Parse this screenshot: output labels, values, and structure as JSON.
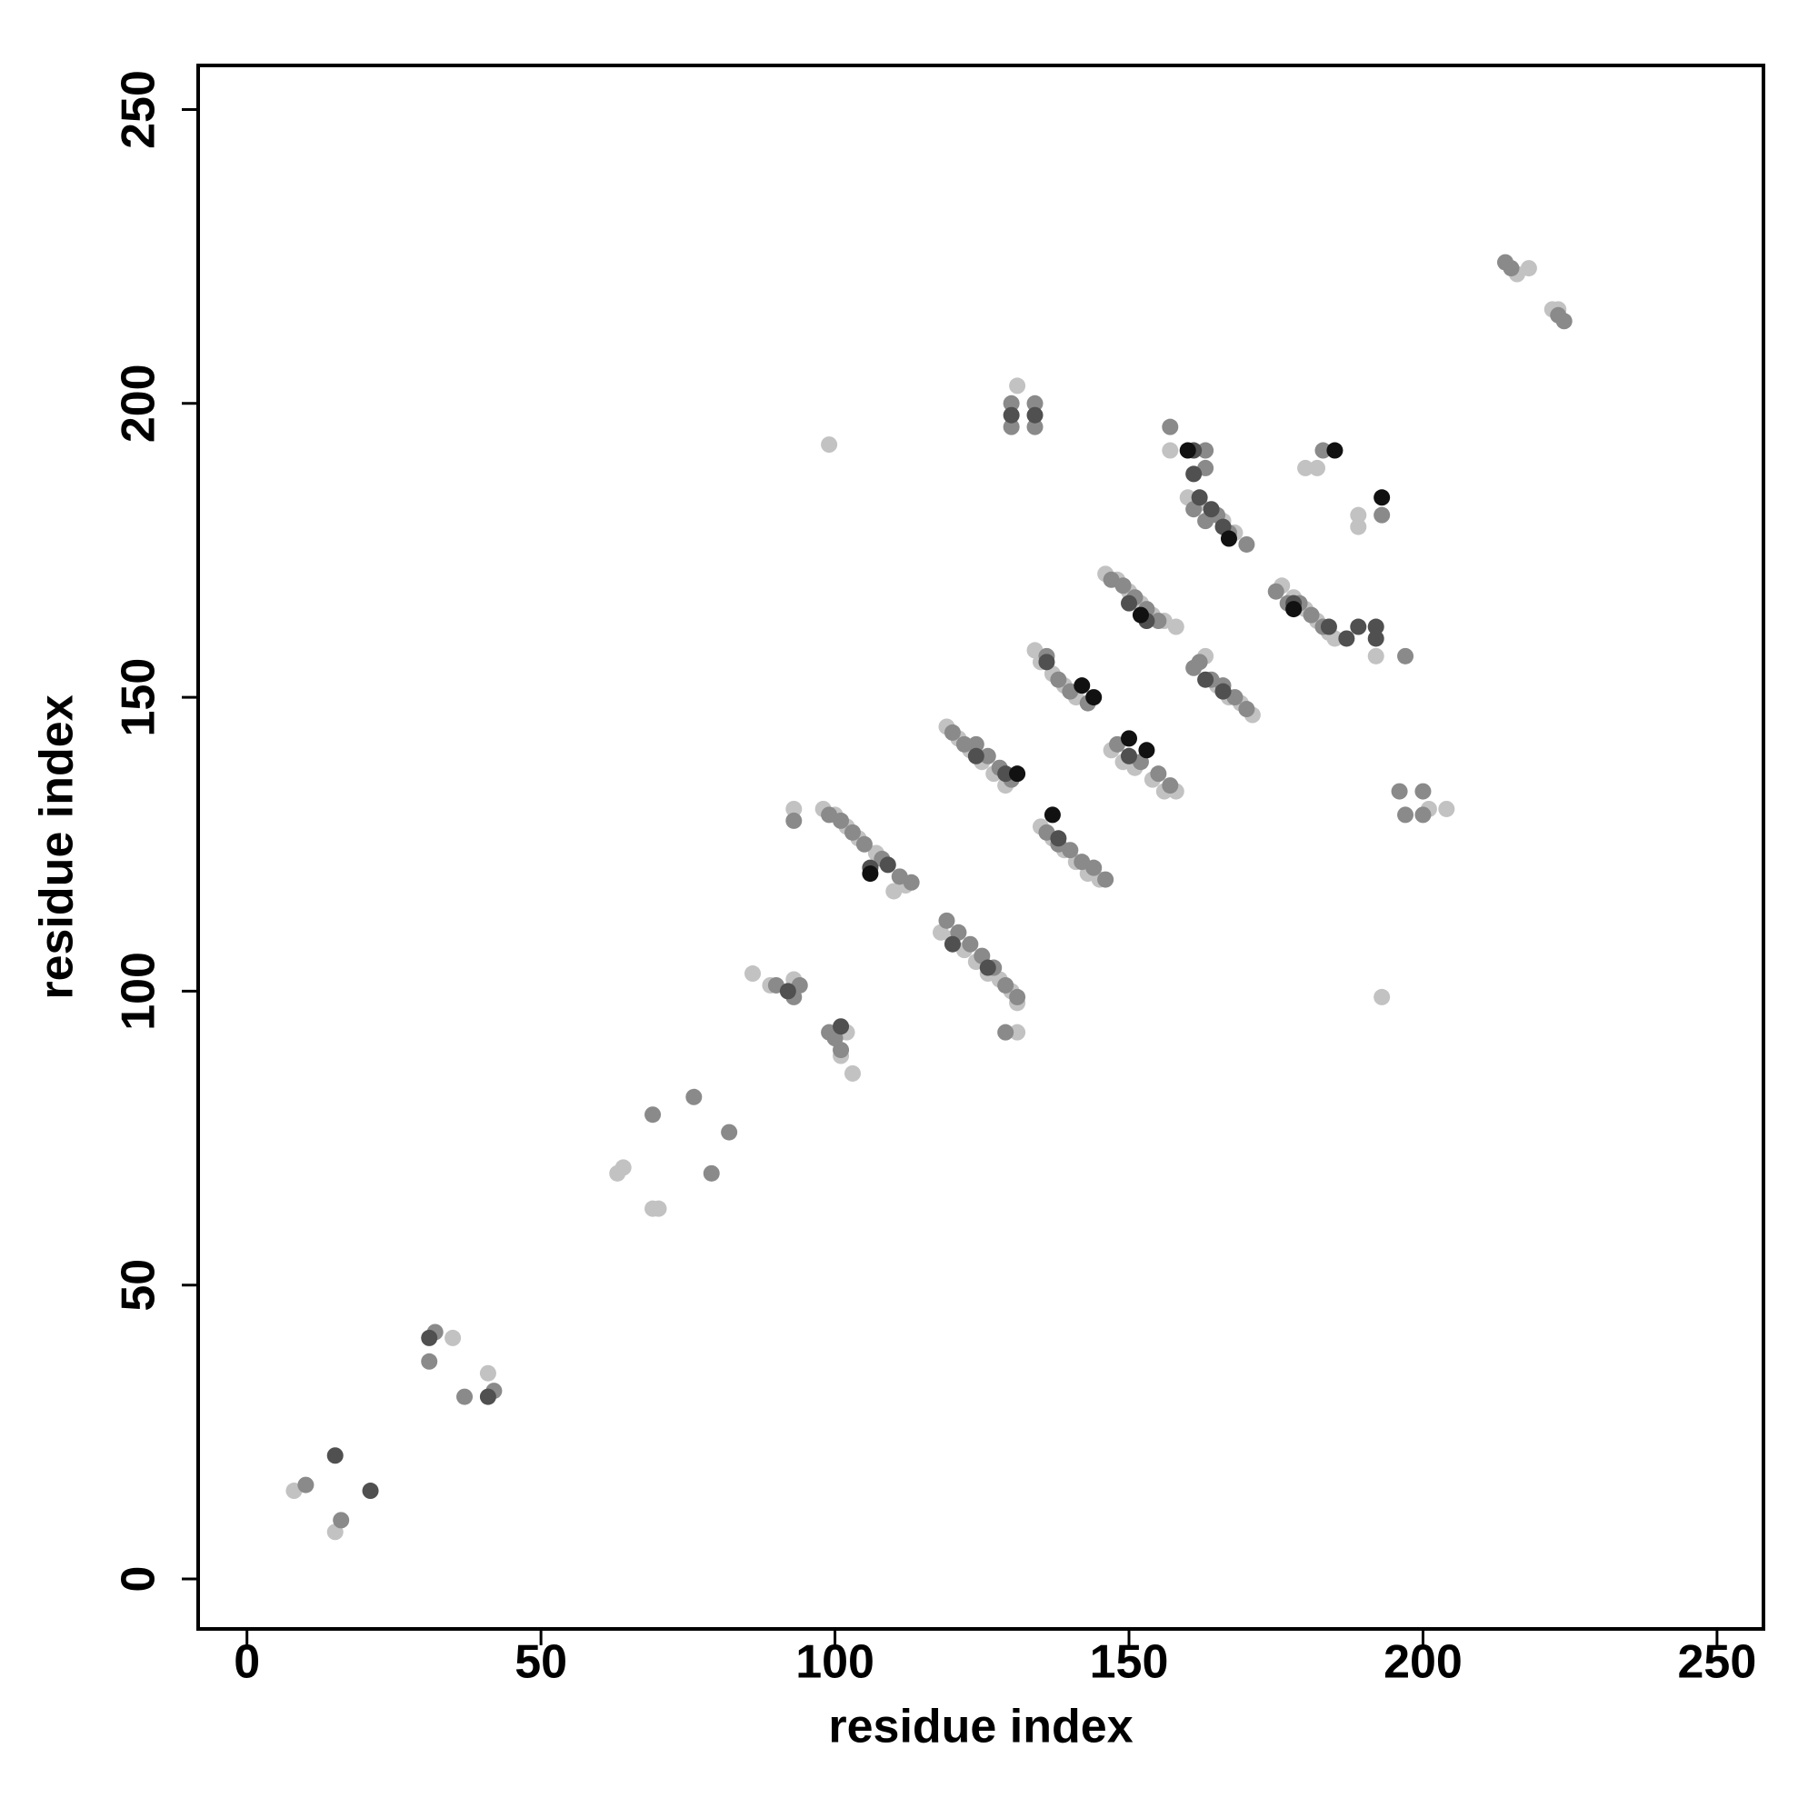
{
  "chart_data": {
    "type": "scatter",
    "xlabel": "residue index",
    "ylabel": "residue index",
    "xlim": [
      -8.3,
      257.9
    ],
    "ylim": [
      -8.5,
      257.5
    ],
    "xticks": [
      0,
      50,
      100,
      150,
      200,
      250
    ],
    "yticks": [
      0,
      50,
      100,
      150,
      200,
      250
    ],
    "grid": false,
    "series": [
      {
        "color": "#c2c2c2",
        "x": [
          8,
          15,
          35,
          41,
          63,
          64,
          69,
          70,
          86,
          89,
          93,
          102,
          101,
          103,
          93,
          99,
          193,
          98,
          100,
          102,
          104,
          107,
          110,
          112,
          118,
          120,
          122,
          124,
          126,
          128,
          130,
          131,
          131,
          119,
          121,
          123,
          125,
          127,
          129,
          135,
          137,
          139,
          141,
          143,
          145,
          134,
          135,
          137,
          139,
          141,
          147,
          149,
          151,
          154,
          156,
          158,
          146,
          148,
          150,
          152,
          154,
          156,
          158,
          163,
          165,
          167,
          169,
          171,
          160,
          162,
          164,
          166,
          168,
          176,
          178,
          180,
          182,
          184,
          185,
          131,
          157,
          180,
          182,
          189,
          189,
          192,
          201,
          204,
          216,
          218,
          222,
          223
        ],
        "y": [
          15,
          8,
          41,
          35,
          69,
          70,
          63,
          63,
          103,
          101,
          102,
          93,
          89,
          86,
          131,
          193,
          99,
          131,
          130,
          128,
          126,
          123.5,
          117,
          118,
          110,
          109,
          107,
          105,
          103,
          102,
          100,
          98,
          93,
          145,
          143,
          141,
          139,
          137,
          135,
          128,
          126,
          124,
          122,
          120,
          119,
          158,
          156,
          154,
          152,
          150,
          141,
          139,
          138,
          136,
          134,
          134,
          171,
          170,
          168,
          166,
          164,
          163,
          162,
          157,
          152,
          150,
          149,
          147,
          184,
          183,
          181,
          180,
          178,
          169,
          167,
          165,
          163,
          161,
          160,
          203,
          192,
          189,
          189,
          181,
          179,
          157,
          131,
          131,
          222,
          223,
          216,
          216
        ]
      },
      {
        "color": "#8a8a8a",
        "x": [
          10,
          16,
          32,
          31,
          37,
          42,
          69,
          76,
          82,
          79,
          90,
          93,
          94,
          93,
          99,
          101,
          100,
          99,
          101,
          103,
          105,
          108,
          111,
          113,
          119,
          121,
          123,
          125,
          127,
          129,
          131,
          129,
          120,
          122,
          124,
          126,
          128,
          130,
          136,
          138,
          140,
          142,
          144,
          146,
          136,
          138,
          140,
          143,
          148,
          150,
          152,
          155,
          157,
          147,
          149,
          151,
          153,
          155,
          161,
          162,
          164,
          166,
          168,
          170,
          161,
          163,
          165,
          167,
          170,
          175,
          177,
          179,
          181,
          183,
          130,
          134,
          130,
          134,
          157,
          163,
          163,
          183,
          193,
          197,
          196,
          200,
          197,
          200,
          214,
          215,
          224,
          223
        ],
        "y": [
          16,
          10,
          42,
          37,
          31,
          32,
          79,
          82,
          76,
          69,
          101,
          99,
          101,
          129,
          93,
          90,
          92,
          130,
          129,
          127,
          125,
          122.5,
          119.5,
          118.5,
          112,
          110,
          108,
          106,
          104,
          101,
          99,
          93,
          144,
          142,
          142,
          140,
          138,
          136,
          127,
          125,
          124,
          122,
          121,
          119,
          157,
          153,
          151,
          149,
          142,
          140,
          139,
          137,
          135,
          170,
          169,
          167,
          165,
          163,
          155,
          156,
          153,
          152,
          150,
          148,
          182,
          180,
          181,
          178,
          176,
          168,
          166,
          166,
          164,
          162,
          200,
          200,
          196,
          196,
          196,
          192,
          189,
          192,
          181,
          157,
          134,
          134,
          130,
          130,
          224,
          223,
          214,
          215
        ]
      },
      {
        "color": "#505050",
        "x": [
          15,
          21,
          31,
          41,
          92,
          101,
          106,
          109,
          120,
          126,
          124,
          129,
          138,
          136,
          150,
          150,
          153,
          163,
          166,
          164,
          166,
          178,
          184,
          130,
          134,
          161,
          161,
          162,
          187,
          189,
          192,
          192
        ],
        "y": [
          21,
          15,
          41,
          31,
          100,
          94,
          121,
          121.5,
          108,
          104,
          140,
          137,
          126,
          156,
          140,
          166,
          163,
          153,
          151,
          182,
          179,
          166,
          162,
          198,
          198,
          192,
          188,
          184,
          160,
          162,
          162,
          160
        ]
      },
      {
        "color": "#111111",
        "x": [
          106,
          131,
          137,
          142,
          144,
          150,
          153,
          152,
          167,
          178,
          185,
          193,
          160
        ],
        "y": [
          120,
          137,
          130,
          152,
          150,
          143,
          141,
          164,
          177,
          165,
          192,
          184,
          192
        ]
      }
    ]
  }
}
